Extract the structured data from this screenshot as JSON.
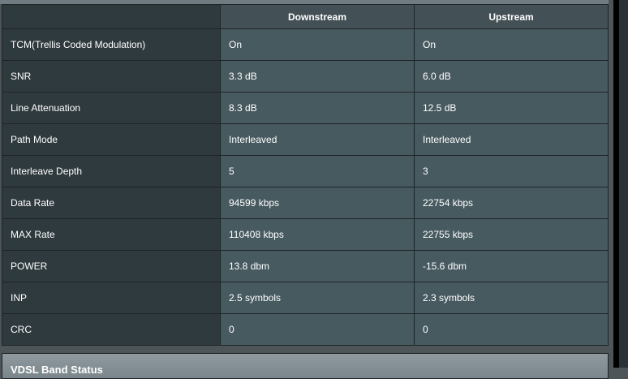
{
  "table": {
    "headers": [
      "",
      "Downstream",
      "Upstream"
    ],
    "rows": [
      {
        "label": "TCM(Trellis Coded Modulation)",
        "down": "On",
        "up": "On"
      },
      {
        "label": "SNR",
        "down": "3.3 dB",
        "up": "6.0 dB"
      },
      {
        "label": "Line Attenuation",
        "down": "8.3 dB",
        "up": "12.5 dB"
      },
      {
        "label": "Path Mode",
        "down": "Interleaved",
        "up": "Interleaved"
      },
      {
        "label": "Interleave Depth",
        "down": "5",
        "up": "3"
      },
      {
        "label": "Data Rate",
        "down": "94599 kbps",
        "up": "22754 kbps"
      },
      {
        "label": "MAX Rate",
        "down": "110408 kbps",
        "up": "22755 kbps"
      },
      {
        "label": "POWER",
        "down": "13.8 dbm",
        "up": "-15.6 dbm"
      },
      {
        "label": "INP",
        "down": "2.5 symbols",
        "up": "2.3 symbols"
      },
      {
        "label": "CRC",
        "down": "0",
        "up": "0"
      }
    ]
  },
  "next_section": {
    "title": "VDSL Band Status"
  }
}
